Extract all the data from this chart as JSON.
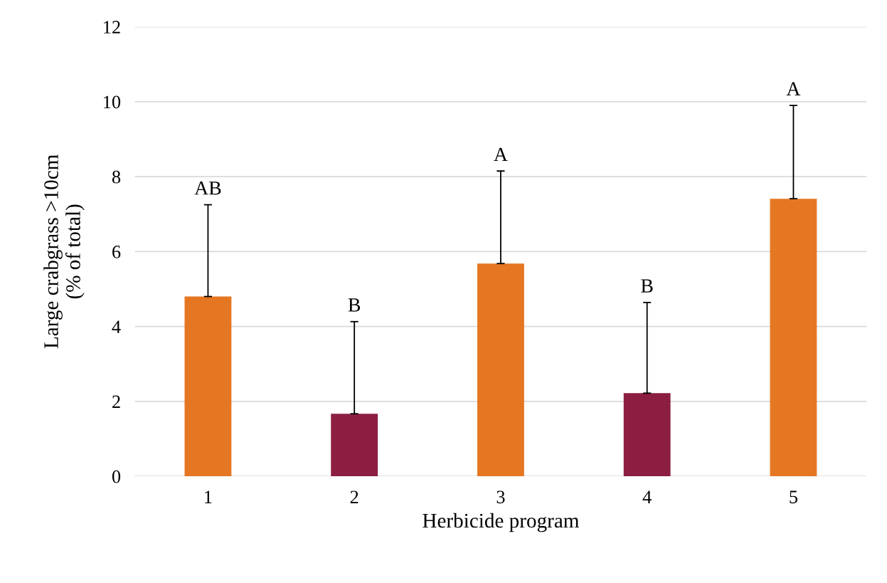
{
  "chart_data": {
    "type": "bar",
    "xlabel": "Herbicide program",
    "ylabel": "Large crabgrass >10cm\n(% of total)",
    "categories": [
      "1",
      "2",
      "3",
      "4",
      "5"
    ],
    "values": [
      4.8,
      1.67,
      5.68,
      2.22,
      7.41
    ],
    "colors": [
      "#e57722",
      "#8b1e41",
      "#e57722",
      "#8b1e41",
      "#e57722"
    ],
    "errors": [
      [
        4.8,
        7.25
      ],
      [
        1.67,
        4.13
      ],
      [
        5.68,
        8.15
      ],
      [
        2.22,
        4.64
      ],
      [
        7.41,
        9.9
      ]
    ],
    "ylim": [
      0,
      12
    ],
    "yticks": [
      0,
      2,
      4,
      6,
      8,
      10,
      12
    ],
    "grid": "y",
    "annotations": [
      {
        "text": "AB",
        "x": "1",
        "y": 7.25
      },
      {
        "text": "B",
        "x": "2",
        "y": 4.13
      },
      {
        "text": "A",
        "x": "3",
        "y": 8.15
      },
      {
        "text": "B",
        "x": "4",
        "y": 4.64
      },
      {
        "text": "A",
        "x": "5",
        "y": 9.9
      }
    ]
  }
}
